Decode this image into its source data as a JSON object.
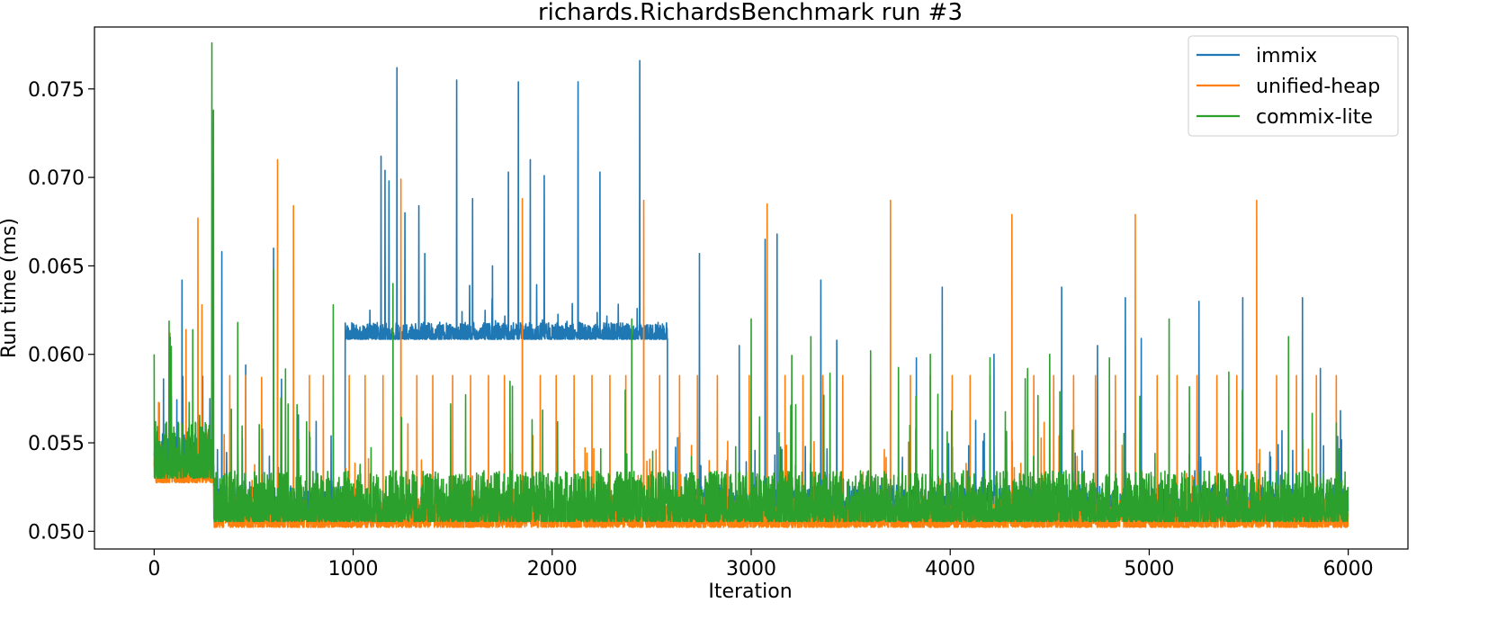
{
  "chart_data": {
    "type": "line",
    "title": "richards.RichardsBenchmark run #3",
    "xlabel": "Iteration",
    "ylabel": "Run time (ms)",
    "xlim": [
      -300,
      6300
    ],
    "ylim": [
      0.049,
      0.0785
    ],
    "xticks": [
      0,
      1000,
      2000,
      3000,
      4000,
      5000,
      6000
    ],
    "xtick_labels": [
      "0",
      "1000",
      "2000",
      "3000",
      "4000",
      "5000",
      "6000"
    ],
    "yticks": [
      0.05,
      0.055,
      0.06,
      0.065,
      0.07,
      0.075
    ],
    "ytick_labels": [
      "0.050",
      "0.055",
      "0.060",
      "0.065",
      "0.070",
      "0.075"
    ],
    "grid": false,
    "legend_position": "top-right",
    "n_points": 6000,
    "series": [
      {
        "name": "immix",
        "color": "#1f77b4",
        "segments": [
          {
            "x_start": 0,
            "x_end": 300,
            "baseline": 0.0535,
            "noise": 0.0015
          },
          {
            "x_start": 300,
            "x_end": 960,
            "baseline": 0.051,
            "noise": 0.0012
          },
          {
            "x_start": 960,
            "x_end": 2580,
            "baseline": 0.061,
            "noise": 0.0006
          },
          {
            "x_start": 2580,
            "x_end": 6000,
            "baseline": 0.051,
            "noise": 0.0012
          }
        ],
        "peaks": [
          {
            "x": 140,
            "y": 0.0642
          },
          {
            "x": 280,
            "y": 0.0575
          },
          {
            "x": 340,
            "y": 0.0658
          },
          {
            "x": 460,
            "y": 0.0594
          },
          {
            "x": 600,
            "y": 0.066
          },
          {
            "x": 640,
            "y": 0.0586
          },
          {
            "x": 1140,
            "y": 0.0712
          },
          {
            "x": 1160,
            "y": 0.0704
          },
          {
            "x": 1180,
            "y": 0.0698
          },
          {
            "x": 1220,
            "y": 0.0762
          },
          {
            "x": 1260,
            "y": 0.068
          },
          {
            "x": 1330,
            "y": 0.0684
          },
          {
            "x": 1360,
            "y": 0.0657
          },
          {
            "x": 1520,
            "y": 0.0755
          },
          {
            "x": 1600,
            "y": 0.0688
          },
          {
            "x": 1700,
            "y": 0.065
          },
          {
            "x": 1780,
            "y": 0.0703
          },
          {
            "x": 1830,
            "y": 0.0754
          },
          {
            "x": 1890,
            "y": 0.071
          },
          {
            "x": 1960,
            "y": 0.0701
          },
          {
            "x": 2130,
            "y": 0.0754
          },
          {
            "x": 2240,
            "y": 0.0703
          },
          {
            "x": 2440,
            "y": 0.0766
          },
          {
            "x": 2740,
            "y": 0.0657
          },
          {
            "x": 2940,
            "y": 0.0605
          },
          {
            "x": 3070,
            "y": 0.0665
          },
          {
            "x": 3130,
            "y": 0.0668
          },
          {
            "x": 3350,
            "y": 0.0642
          },
          {
            "x": 3430,
            "y": 0.0608
          },
          {
            "x": 3830,
            "y": 0.0598
          },
          {
            "x": 3960,
            "y": 0.0638
          },
          {
            "x": 4220,
            "y": 0.06
          },
          {
            "x": 4560,
            "y": 0.0638
          },
          {
            "x": 4740,
            "y": 0.0605
          },
          {
            "x": 4880,
            "y": 0.0632
          },
          {
            "x": 4960,
            "y": 0.0609
          },
          {
            "x": 5250,
            "y": 0.063
          },
          {
            "x": 5470,
            "y": 0.0632
          },
          {
            "x": 5770,
            "y": 0.0632
          },
          {
            "x": 5860,
            "y": 0.0592
          }
        ]
      },
      {
        "name": "unified-heap",
        "color": "#ff7f0e",
        "segments": [
          {
            "x_start": 0,
            "x_end": 300,
            "baseline": 0.053,
            "noise": 0.001
          },
          {
            "x_start": 300,
            "x_end": 6000,
            "baseline": 0.0505,
            "noise": 0.0011
          }
        ],
        "peaks": [
          {
            "x": 80,
            "y": 0.0612
          },
          {
            "x": 160,
            "y": 0.0614
          },
          {
            "x": 220,
            "y": 0.0677
          },
          {
            "x": 240,
            "y": 0.0628
          },
          {
            "x": 380,
            "y": 0.0588
          },
          {
            "x": 460,
            "y": 0.0588
          },
          {
            "x": 540,
            "y": 0.0587
          },
          {
            "x": 620,
            "y": 0.071
          },
          {
            "x": 700,
            "y": 0.0684
          },
          {
            "x": 780,
            "y": 0.0588
          },
          {
            "x": 850,
            "y": 0.0588
          },
          {
            "x": 980,
            "y": 0.0588
          },
          {
            "x": 1060,
            "y": 0.0588
          },
          {
            "x": 1150,
            "y": 0.0588
          },
          {
            "x": 1240,
            "y": 0.0699
          },
          {
            "x": 1320,
            "y": 0.0588
          },
          {
            "x": 1400,
            "y": 0.0588
          },
          {
            "x": 1500,
            "y": 0.0588
          },
          {
            "x": 1590,
            "y": 0.0588
          },
          {
            "x": 1680,
            "y": 0.0588
          },
          {
            "x": 1760,
            "y": 0.0588
          },
          {
            "x": 1850,
            "y": 0.0688
          },
          {
            "x": 1940,
            "y": 0.0588
          },
          {
            "x": 2020,
            "y": 0.0588
          },
          {
            "x": 2110,
            "y": 0.0588
          },
          {
            "x": 2200,
            "y": 0.0588
          },
          {
            "x": 2290,
            "y": 0.0588
          },
          {
            "x": 2370,
            "y": 0.0588
          },
          {
            "x": 2460,
            "y": 0.0687
          },
          {
            "x": 2540,
            "y": 0.0588
          },
          {
            "x": 2640,
            "y": 0.0588
          },
          {
            "x": 2730,
            "y": 0.0588
          },
          {
            "x": 2830,
            "y": 0.0588
          },
          {
            "x": 2990,
            "y": 0.0588
          },
          {
            "x": 3080,
            "y": 0.0685
          },
          {
            "x": 3170,
            "y": 0.0588
          },
          {
            "x": 3260,
            "y": 0.0588
          },
          {
            "x": 3360,
            "y": 0.0588
          },
          {
            "x": 3460,
            "y": 0.0588
          },
          {
            "x": 3600,
            "y": 0.0588
          },
          {
            "x": 3700,
            "y": 0.0687
          },
          {
            "x": 3800,
            "y": 0.0588
          },
          {
            "x": 3900,
            "y": 0.0588
          },
          {
            "x": 4010,
            "y": 0.0588
          },
          {
            "x": 4100,
            "y": 0.0588
          },
          {
            "x": 4200,
            "y": 0.0588
          },
          {
            "x": 4310,
            "y": 0.0679
          },
          {
            "x": 4420,
            "y": 0.0588
          },
          {
            "x": 4520,
            "y": 0.0588
          },
          {
            "x": 4620,
            "y": 0.0588
          },
          {
            "x": 4730,
            "y": 0.0588
          },
          {
            "x": 4830,
            "y": 0.0588
          },
          {
            "x": 4930,
            "y": 0.0679
          },
          {
            "x": 5040,
            "y": 0.0588
          },
          {
            "x": 5140,
            "y": 0.0588
          },
          {
            "x": 5240,
            "y": 0.0588
          },
          {
            "x": 5340,
            "y": 0.0588
          },
          {
            "x": 5440,
            "y": 0.0588
          },
          {
            "x": 5540,
            "y": 0.0687
          },
          {
            "x": 5640,
            "y": 0.0588
          },
          {
            "x": 5740,
            "y": 0.0588
          },
          {
            "x": 5840,
            "y": 0.0588
          },
          {
            "x": 5940,
            "y": 0.0588
          }
        ]
      },
      {
        "name": "commix-lite",
        "color": "#2ca02c",
        "segments": [
          {
            "x_start": 0,
            "x_end": 300,
            "baseline": 0.0535,
            "noise": 0.002
          },
          {
            "x_start": 300,
            "x_end": 6000,
            "baseline": 0.051,
            "noise": 0.0018
          }
        ],
        "peaks": [
          {
            "x": 0,
            "y": 0.06
          },
          {
            "x": 290,
            "y": 0.0776
          },
          {
            "x": 298,
            "y": 0.0738
          },
          {
            "x": 420,
            "y": 0.0618
          },
          {
            "x": 600,
            "y": 0.0648
          },
          {
            "x": 900,
            "y": 0.0628
          },
          {
            "x": 1200,
            "y": 0.064
          },
          {
            "x": 1490,
            "y": 0.0572
          },
          {
            "x": 1800,
            "y": 0.0582
          },
          {
            "x": 2400,
            "y": 0.062
          },
          {
            "x": 3000,
            "y": 0.062
          },
          {
            "x": 3300,
            "y": 0.061
          },
          {
            "x": 3600,
            "y": 0.0602
          },
          {
            "x": 3900,
            "y": 0.06
          },
          {
            "x": 4200,
            "y": 0.0598
          },
          {
            "x": 4500,
            "y": 0.06
          },
          {
            "x": 4800,
            "y": 0.0598
          },
          {
            "x": 5100,
            "y": 0.062
          },
          {
            "x": 5400,
            "y": 0.059
          },
          {
            "x": 5700,
            "y": 0.061
          }
        ]
      }
    ]
  }
}
